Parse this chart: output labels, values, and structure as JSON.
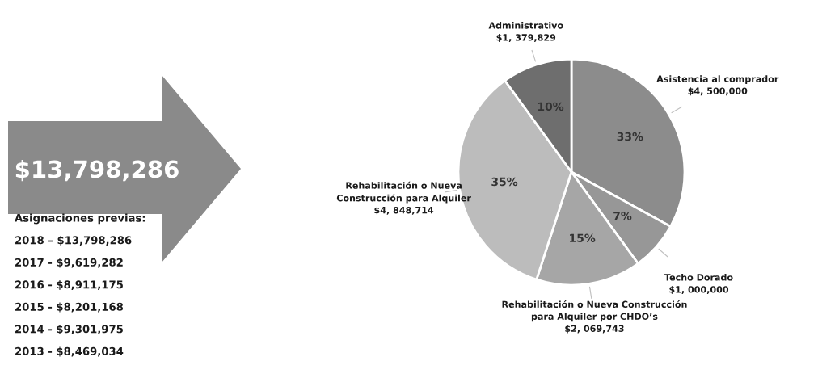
{
  "chart_data": {
    "type": "pie",
    "categories": [
      "Asistencia al comprador",
      "Techo Dorado",
      "Rehabilitación o Nueva Construcción\npara Alquiler por CHDO’s",
      "Rehabilitación o Nueva\nConstrucción para Alquiler",
      "Administrativo"
    ],
    "values": [
      33,
      7,
      15,
      35,
      10
    ],
    "value_labels": [
      "33%",
      "7%",
      "15%",
      "35%",
      "10%"
    ],
    "colors": [
      "#8c8c8c",
      "#979797",
      "#a6a6a6",
      "#bcbcbc",
      "#6e6e6e"
    ],
    "annotations": [
      "$13,798,286",
      "Asignaciones previas:",
      "2018 – $13,798,286",
      "2017 - $9,619,282",
      "2016 - $8,911,175",
      "2015 - $8,201,168",
      "2014 - $9,301,975",
      "2013 - $8,469,034",
      {
        "text": "$4, 500,000",
        "x": "Asistencia al comprador"
      },
      {
        "text": "$1, 000,000",
        "x": "Techo Dorado"
      },
      {
        "text": "$2, 069,743",
        "x": "Rehabilitación o Nueva Construcción\npara Alquiler por CHDO’s"
      },
      {
        "text": "$4, 848,714",
        "x": "Rehabilitación o Nueva\nConstrucción para Alquiler"
      },
      {
        "text": "$1, 379,829",
        "x": "Administrativo"
      }
    ],
    "legend": false
  }
}
